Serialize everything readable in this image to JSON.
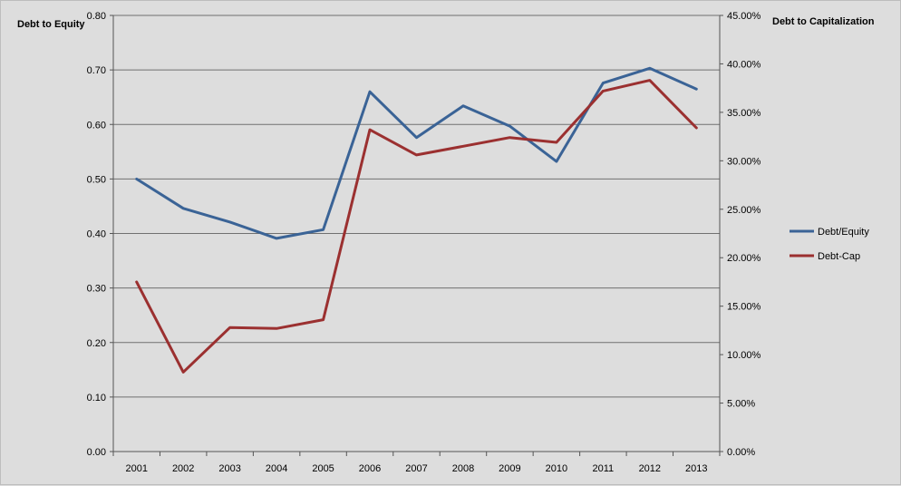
{
  "chart_data": {
    "type": "line",
    "categories": [
      "2001",
      "2002",
      "2003",
      "2004",
      "2005",
      "2006",
      "2007",
      "2008",
      "2009",
      "2010",
      "2011",
      "2012",
      "2013"
    ],
    "series": [
      {
        "name": "Debt/Equity",
        "axis": "left",
        "color": "#3a6396",
        "values": [
          0.5,
          0.446,
          0.421,
          0.391,
          0.407,
          0.66,
          0.576,
          0.634,
          0.597,
          0.532,
          0.676,
          0.703,
          0.665
        ]
      },
      {
        "name": "Debt-Cap",
        "axis": "right",
        "color": "#9b3030",
        "values": [
          0.175,
          0.082,
          0.128,
          0.127,
          0.136,
          0.332,
          0.306,
          0.315,
          0.324,
          0.319,
          0.372,
          0.383,
          0.334
        ]
      }
    ],
    "ylabel": "Debt to Equity",
    "ylabel_right": "Debt to Capitalization",
    "ylim": [
      0,
      0.8
    ],
    "ylim_right": [
      0,
      0.45
    ],
    "yticks": [
      "0.00",
      "0.10",
      "0.20",
      "0.30",
      "0.40",
      "0.50",
      "0.60",
      "0.70",
      "0.80"
    ],
    "yticks_right": [
      "0.00%",
      "5.00%",
      "10.00%",
      "15.00%",
      "20.00%",
      "25.00%",
      "30.00%",
      "35.00%",
      "40.00%",
      "45.00%"
    ],
    "grid": true,
    "legend_position": "right"
  }
}
